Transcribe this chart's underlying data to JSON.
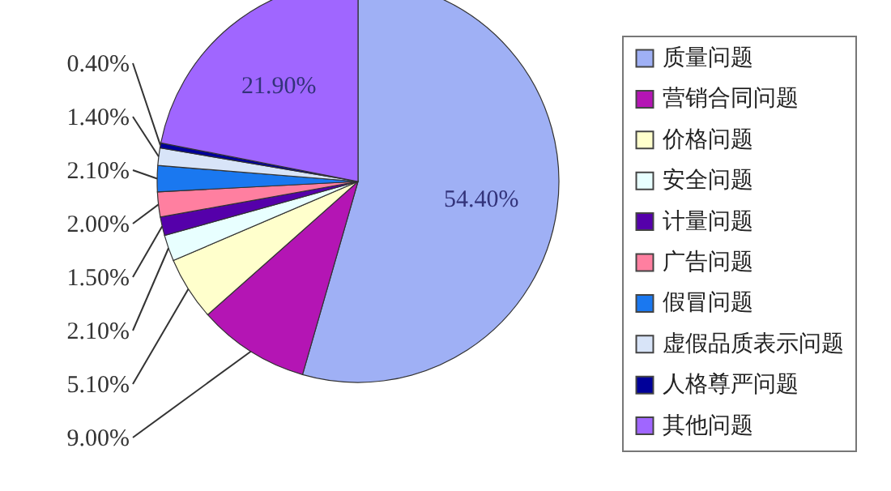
{
  "chart_data": {
    "type": "pie",
    "categories": [
      "质量问题",
      "营销合同问题",
      "价格问题",
      "安全问题",
      "计量问题",
      "广告问题",
      "假冒问题",
      "虚假品质表示问题",
      "人格尊严问题",
      "其他问题"
    ],
    "values": [
      54.4,
      9.0,
      5.1,
      2.1,
      1.5,
      2.0,
      2.1,
      1.4,
      0.4,
      21.9
    ],
    "value_labels": [
      "54.40%",
      "9.00%",
      "5.10%",
      "2.10%",
      "1.50%",
      "2.00%",
      "2.10%",
      "1.40%",
      "0.40%",
      "21.90%"
    ],
    "colors": [
      "#9fb0f5",
      "#b415b4",
      "#ffffcc",
      "#e8ffff",
      "#5500aa",
      "#ff7fa0",
      "#1a78f0",
      "#d8e4f8",
      "#000099",
      "#a066ff"
    ],
    "legend": "right"
  }
}
